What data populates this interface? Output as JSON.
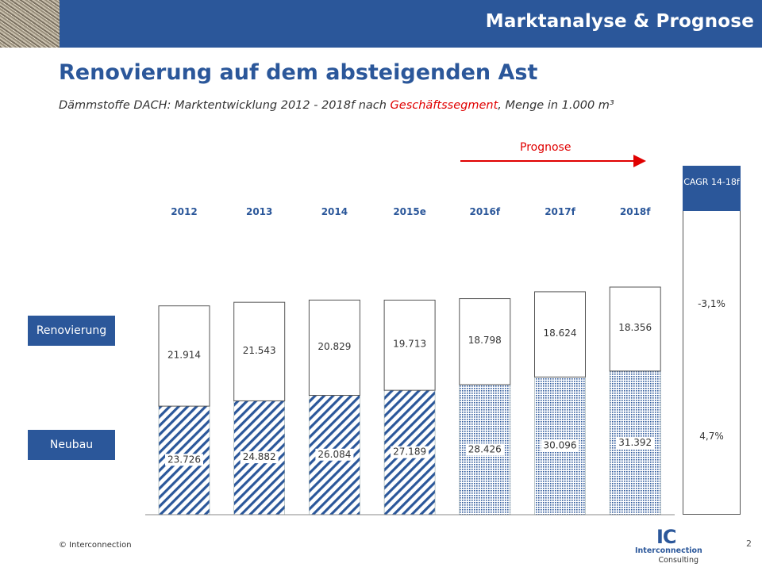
{
  "header": {
    "title": "Marktanalyse & Prognose"
  },
  "page": {
    "title": "Renovierung auf dem absteigenden Ast",
    "subtitle_pre": "Dämmstoffe DACH: Marktentwicklung 2012 - 2018f nach ",
    "subtitle_highlight": "Geschäftssegment",
    "subtitle_post": ", Menge in 1.000 m³",
    "prognose_label": "Prognose"
  },
  "legend_labels": {
    "renovierung": "Renovierung",
    "neubau": "Neubau"
  },
  "cagr": {
    "header": "CAGR 14-18f",
    "renovierung": "-3,1%",
    "neubau": "4,7%"
  },
  "footer": {
    "copyright": "© Interconnection",
    "page_number": "2"
  },
  "logo": {
    "mark": "IC",
    "line1": "Interconnection",
    "line2": "Consulting"
  },
  "colors": {
    "brand": "#2b579a",
    "highlight": "#e00000"
  },
  "chart_data": {
    "type": "bar",
    "stacked": true,
    "categories": [
      "2012",
      "2013",
      "2014",
      "2015e",
      "2016f",
      "2017f",
      "2018f"
    ],
    "forecast_from_index": 4,
    "series": [
      {
        "name": "Neubau",
        "values": [
          23726,
          24882,
          26084,
          27189,
          28426,
          30096,
          31392
        ],
        "labels": [
          "23.726",
          "24.882",
          "26.084",
          "27.189",
          "28.426",
          "30.096",
          "31.392"
        ]
      },
      {
        "name": "Renovierung",
        "values": [
          21914,
          21543,
          20829,
          19713,
          18798,
          18624,
          18356
        ],
        "labels": [
          "21.914",
          "21.543",
          "20.829",
          "19.713",
          "18.798",
          "18.624",
          "18.356"
        ]
      }
    ],
    "ylim": [
      0,
      52000
    ]
  }
}
